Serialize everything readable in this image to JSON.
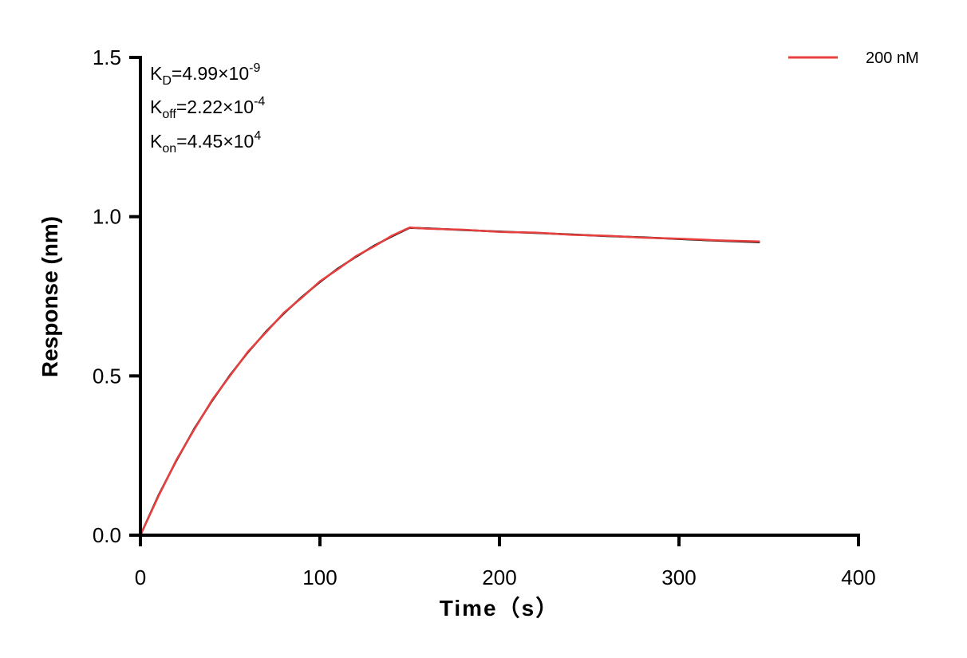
{
  "chart_data": {
    "type": "line",
    "title": "",
    "xlabel": "Time（s）",
    "ylabel": "Response (nm)",
    "xlim": [
      0,
      400
    ],
    "ylim": [
      0,
      1.5
    ],
    "xticks": [
      0,
      100,
      200,
      300,
      400
    ],
    "yticks": [
      0,
      0.5,
      1.0,
      1.5
    ],
    "xtick_labels": [
      "0",
      "100",
      "200",
      "300",
      "400"
    ],
    "ytick_labels": [
      "0.0",
      "0.5",
      "1.0",
      "1.5"
    ],
    "grid": false,
    "legend_position": "top-right",
    "annotations": {
      "kd": {
        "base": "K",
        "sub": "D",
        "mid": "=4.99×10",
        "sup": "-9"
      },
      "koff": {
        "base": "K",
        "sub": "off",
        "mid": "=2.22×10",
        "sup": "-4"
      },
      "kon": {
        "base": "K",
        "sub": "on",
        "mid": "=4.45×10",
        "sup": "4"
      }
    },
    "series": [
      {
        "role": "fit",
        "color": "#000000",
        "x": [
          0,
          10,
          20,
          30,
          40,
          50,
          60,
          70,
          80,
          90,
          100,
          110,
          120,
          130,
          140,
          150,
          160,
          180,
          200,
          220,
          240,
          260,
          280,
          300,
          320,
          345
        ],
        "y": [
          0,
          0.124,
          0.234,
          0.334,
          0.423,
          0.503,
          0.575,
          0.639,
          0.697,
          0.748,
          0.795,
          0.837,
          0.874,
          0.908,
          0.938,
          0.965,
          0.963,
          0.958,
          0.953,
          0.949,
          0.944,
          0.939,
          0.935,
          0.93,
          0.925,
          0.92
        ]
      },
      {
        "name": "200 nM",
        "role": "measured",
        "color": "#e8403f",
        "x": [
          0,
          10,
          20,
          30,
          40,
          50,
          60,
          70,
          80,
          90,
          100,
          110,
          120,
          130,
          140,
          150,
          160,
          180,
          200,
          220,
          240,
          260,
          280,
          300,
          320,
          345
        ],
        "y": [
          0,
          0.122,
          0.236,
          0.332,
          0.425,
          0.501,
          0.577,
          0.637,
          0.699,
          0.746,
          0.797,
          0.835,
          0.876,
          0.906,
          0.94,
          0.966,
          0.962,
          0.959,
          0.952,
          0.95,
          0.943,
          0.94,
          0.934,
          0.931,
          0.926,
          0.922
        ]
      }
    ]
  }
}
